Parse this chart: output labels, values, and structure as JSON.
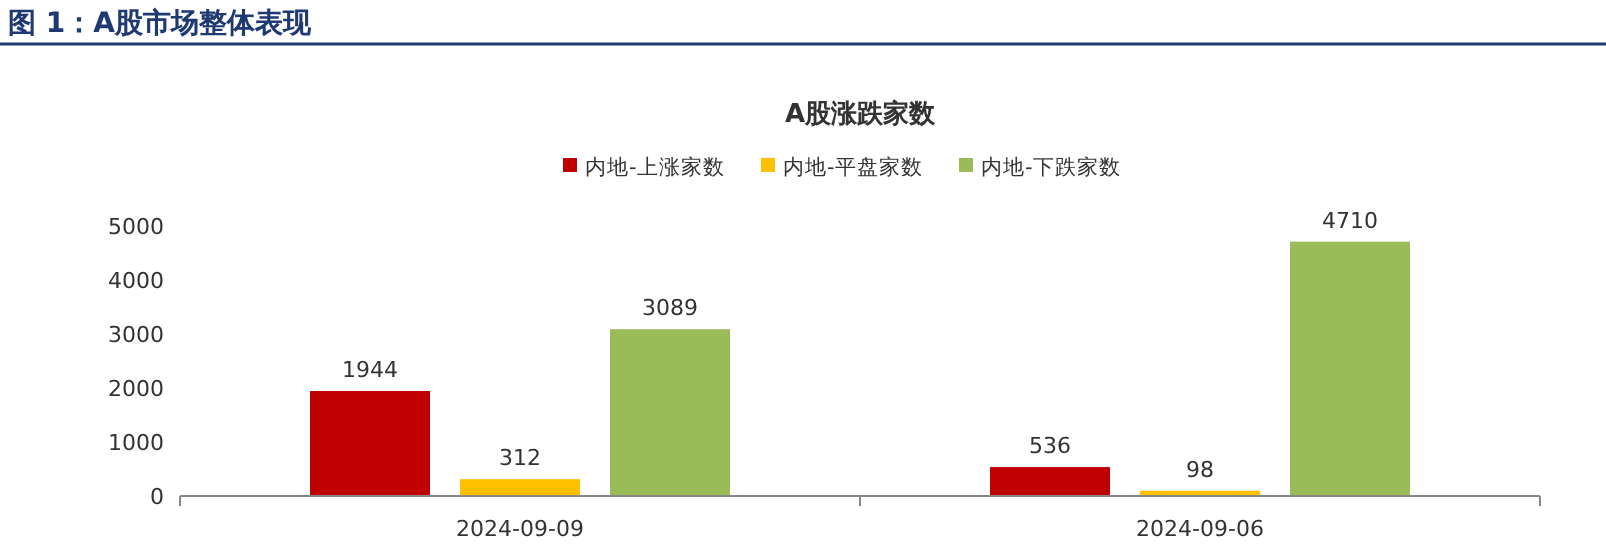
{
  "chart_data": {
    "type": "bar",
    "title": "A股涨跌家数",
    "annotations": [
      "图 1：A股市场整体表现"
    ],
    "categories": [
      "2024-09-09",
      "2024-09-06"
    ],
    "series": [
      {
        "name": "内地-上涨家数",
        "color": "#c00000",
        "values": [
          1944,
          536
        ]
      },
      {
        "name": "内地-平盘家数",
        "color": "#ffc000",
        "values": [
          312,
          98
        ]
      },
      {
        "name": "内地-下跌家数",
        "color": "#9bbb59",
        "values": [
          3089,
          4710
        ]
      }
    ],
    "ylim": [
      0,
      5000
    ],
    "yticks": [
      0,
      1000,
      2000,
      3000,
      4000,
      5000
    ],
    "data_labels": true,
    "legend": "top",
    "grid": false
  }
}
